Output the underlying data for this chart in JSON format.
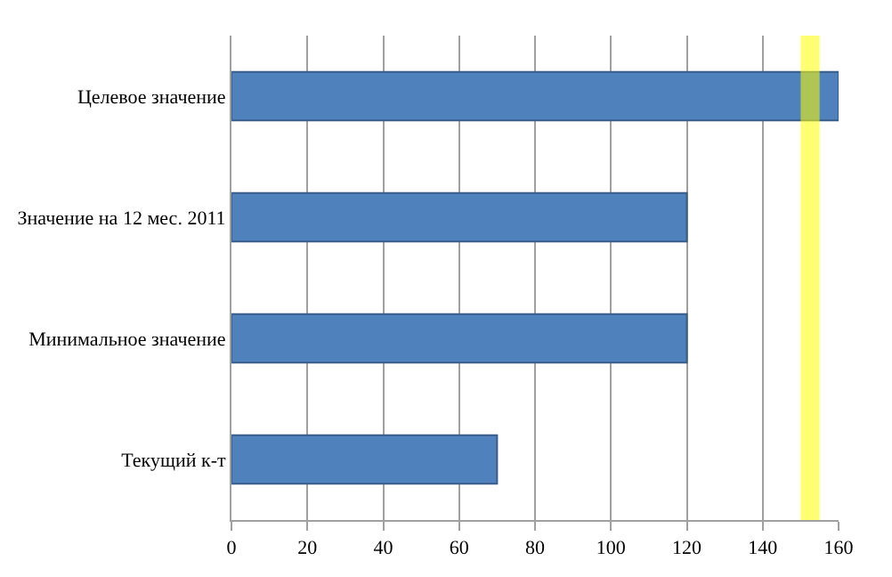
{
  "chart_data": {
    "type": "bar",
    "orientation": "horizontal",
    "categories": [
      "Целевое значение",
      "Значение на 12 мес. 2011",
      "Минимальное значение",
      "Текущий к-т"
    ],
    "values": [
      160,
      120,
      120,
      70
    ],
    "color": "#4f81bd",
    "xlim": [
      0,
      160
    ],
    "xticks": [
      0,
      20,
      40,
      60,
      80,
      100,
      120,
      140,
      160
    ],
    "grid": "x",
    "bands": [
      {
        "axis": "x",
        "from": 150,
        "to": 155,
        "color": "#ffff00"
      }
    ]
  }
}
